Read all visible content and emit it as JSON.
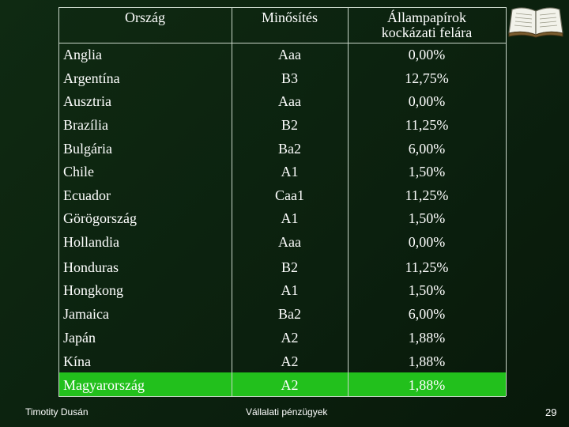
{
  "headers": {
    "country": "Ország",
    "rating": "Minősítés",
    "spread_line1": "Állampapírok",
    "spread_line2": "kockázati felára"
  },
  "rows": [
    {
      "country": "Anglia",
      "rating": "Aaa",
      "spread": "0,00%"
    },
    {
      "country": "Argentína",
      "rating": "B3",
      "spread": "12,75%"
    },
    {
      "country": "Ausztria",
      "rating": "Aaa",
      "spread": "0,00%"
    },
    {
      "country": "Brazília",
      "rating": "B2",
      "spread": "11,25%"
    },
    {
      "country": "Bulgária",
      "rating": "Ba2",
      "spread": "6,00%"
    },
    {
      "country": "Chile",
      "rating": "A1",
      "spread": "1,50%"
    },
    {
      "country": "Ecuador",
      "rating": "Caa1",
      "spread": "11,25%"
    },
    {
      "country": "Görögország",
      "rating": "A1",
      "spread": "1,50%"
    },
    {
      "country": "Hollandia",
      "rating": "Aaa",
      "spread": "0,00%"
    },
    {
      "country": "Honduras",
      "rating": "B2",
      "spread": "11,25%"
    },
    {
      "country": "Hongkong",
      "rating": "A1",
      "spread": "1,50%"
    },
    {
      "country": "Jamaica",
      "rating": "Ba2",
      "spread": "6,00%"
    },
    {
      "country": "Japán",
      "rating": "A2",
      "spread": "1,88%"
    },
    {
      "country": "Kína",
      "rating": "A2",
      "spread": "1,88%"
    },
    {
      "country": "Magyarország",
      "rating": "A2",
      "spread": "1,88%"
    }
  ],
  "highlighted_row": "Magyarország",
  "colors": {
    "background": "#0f2a12",
    "highlight": "#22c01c",
    "text": "#ffffff"
  },
  "footer": {
    "author": "Timotity Dusán",
    "course": "Vállalati pénzügyek",
    "page_number": "29"
  },
  "icons": [
    "open-book-icon"
  ]
}
